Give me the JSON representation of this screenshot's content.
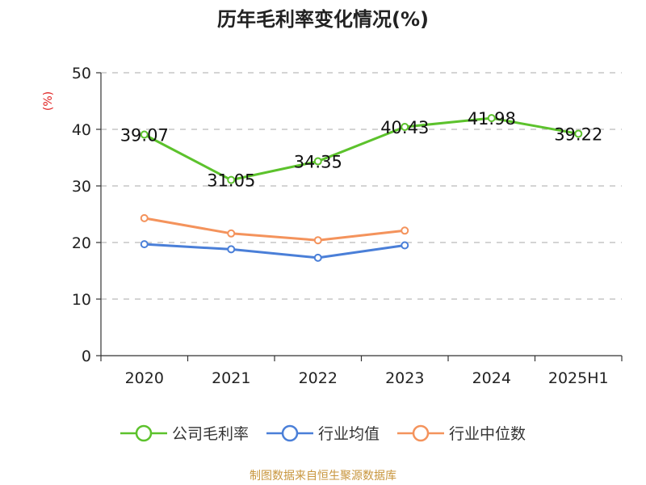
{
  "chart_data": {
    "type": "line",
    "title": "历年毛利率变化情况(%)",
    "ylabel": "(%)",
    "xlabel": "",
    "categories": [
      "2020",
      "2021",
      "2022",
      "2023",
      "2024",
      "2025H1"
    ],
    "ylim": [
      0,
      50
    ],
    "yticks": [
      0,
      10,
      20,
      30,
      40,
      50
    ],
    "grid": true,
    "legend_position": "bottom",
    "series": [
      {
        "name": "公司毛利率",
        "color": "#5cc22c",
        "values": [
          39.07,
          31.05,
          34.35,
          40.43,
          41.98,
          39.22
        ],
        "show_labels": true
      },
      {
        "name": "行业均值",
        "color": "#4a7fd8",
        "values": [
          19.7,
          18.8,
          17.3,
          19.5,
          null,
          null
        ],
        "show_labels": false
      },
      {
        "name": "行业中位数",
        "color": "#f4935c",
        "values": [
          24.3,
          21.6,
          20.4,
          22.1,
          null,
          null
        ],
        "show_labels": false
      }
    ]
  },
  "source_note": "制图数据来自恒生聚源数据库"
}
